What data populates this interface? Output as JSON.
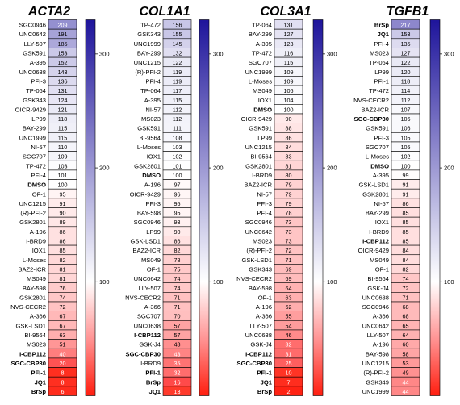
{
  "chart_data": [
    {
      "type": "heatmap",
      "title": "ACTA2",
      "scale_ticks": [
        100,
        200,
        300
      ],
      "min": 0,
      "max": 330,
      "rows": [
        {
          "label": "SGC0946",
          "value": 209,
          "bold": false
        },
        {
          "label": "UNC0642",
          "value": 191,
          "bold": false
        },
        {
          "label": "LLY-507",
          "value": 185,
          "bold": false
        },
        {
          "label": "GSK591",
          "value": 153,
          "bold": false
        },
        {
          "label": "A-395",
          "value": 152,
          "bold": false
        },
        {
          "label": "UNC0638",
          "value": 143,
          "bold": false
        },
        {
          "label": "PFI-3",
          "value": 136,
          "bold": false
        },
        {
          "label": "TP-064",
          "value": 131,
          "bold": false
        },
        {
          "label": "GSK343",
          "value": 124,
          "bold": false
        },
        {
          "label": "OICR-9429",
          "value": 121,
          "bold": false
        },
        {
          "label": "LP99",
          "value": 118,
          "bold": false
        },
        {
          "label": "BAY-299",
          "value": 115,
          "bold": false
        },
        {
          "label": "UNC1999",
          "value": 115,
          "bold": false
        },
        {
          "label": "NI-57",
          "value": 110,
          "bold": false
        },
        {
          "label": "SGC707",
          "value": 109,
          "bold": false
        },
        {
          "label": "TP-472",
          "value": 103,
          "bold": false
        },
        {
          "label": "PFI-4",
          "value": 101,
          "bold": false
        },
        {
          "label": "DMSO",
          "value": 100,
          "bold": true
        },
        {
          "label": "OF-1",
          "value": 95,
          "bold": false
        },
        {
          "label": "UNC1215",
          "value": 91,
          "bold": false
        },
        {
          "label": "(R)-PFI-2",
          "value": 90,
          "bold": false
        },
        {
          "label": "GSK2801",
          "value": 89,
          "bold": false
        },
        {
          "label": "A-196",
          "value": 86,
          "bold": false
        },
        {
          "label": "I-BRD9",
          "value": 86,
          "bold": false
        },
        {
          "label": "IOX1",
          "value": 85,
          "bold": false
        },
        {
          "label": "L-Moses",
          "value": 82,
          "bold": false
        },
        {
          "label": "BAZ2-ICR",
          "value": 81,
          "bold": false
        },
        {
          "label": "MS049",
          "value": 81,
          "bold": false
        },
        {
          "label": "BAY-598",
          "value": 76,
          "bold": false
        },
        {
          "label": "GSK2801",
          "value": 74,
          "bold": false
        },
        {
          "label": "NVS-CECR2",
          "value": 72,
          "bold": false
        },
        {
          "label": "A-366",
          "value": 67,
          "bold": false
        },
        {
          "label": "GSK-LSD1",
          "value": 67,
          "bold": false
        },
        {
          "label": "BI-9564",
          "value": 63,
          "bold": false
        },
        {
          "label": "MS023",
          "value": 51,
          "bold": false
        },
        {
          "label": "I-CBP112",
          "value": 40,
          "bold": true
        },
        {
          "label": "SGC-CBP30",
          "value": 20,
          "bold": true
        },
        {
          "label": "PFI-1",
          "value": 8,
          "bold": true
        },
        {
          "label": "JQ1",
          "value": 8,
          "bold": true
        },
        {
          "label": "BrSp",
          "value": 6,
          "bold": true
        }
      ]
    },
    {
      "type": "heatmap",
      "title": "COL1A1",
      "scale_ticks": [
        100,
        200,
        300
      ],
      "min": 0,
      "max": 330,
      "rows": [
        {
          "label": "TP-472",
          "value": 156,
          "bold": false
        },
        {
          "label": "GSK343",
          "value": 155,
          "bold": false
        },
        {
          "label": "UNC1999",
          "value": 145,
          "bold": false
        },
        {
          "label": "BAY-299",
          "value": 132,
          "bold": false
        },
        {
          "label": "UNC1215",
          "value": 122,
          "bold": false
        },
        {
          "label": "(R)-PFI-2",
          "value": 119,
          "bold": false
        },
        {
          "label": "PFI-4",
          "value": 119,
          "bold": false
        },
        {
          "label": "TP-064",
          "value": 117,
          "bold": false
        },
        {
          "label": "A-395",
          "value": 115,
          "bold": false
        },
        {
          "label": "NI-57",
          "value": 112,
          "bold": false
        },
        {
          "label": "MS023",
          "value": 112,
          "bold": false
        },
        {
          "label": "GSK591",
          "value": 111,
          "bold": false
        },
        {
          "label": "BI-9564",
          "value": 108,
          "bold": false
        },
        {
          "label": "L-Moses",
          "value": 103,
          "bold": false
        },
        {
          "label": "IOX1",
          "value": 102,
          "bold": false
        },
        {
          "label": "GSK2801",
          "value": 101,
          "bold": false
        },
        {
          "label": "DMSO",
          "value": 100,
          "bold": true
        },
        {
          "label": "A-196",
          "value": 97,
          "bold": false
        },
        {
          "label": "OICR-9429",
          "value": 96,
          "bold": false
        },
        {
          "label": "PFI-3",
          "value": 95,
          "bold": false
        },
        {
          "label": "BAY-598",
          "value": 95,
          "bold": false
        },
        {
          "label": "SGC0946",
          "value": 93,
          "bold": false
        },
        {
          "label": "LP99",
          "value": 90,
          "bold": false
        },
        {
          "label": "GSK-LSD1",
          "value": 86,
          "bold": false
        },
        {
          "label": "BAZ2-ICR",
          "value": 82,
          "bold": false
        },
        {
          "label": "MS049",
          "value": 78,
          "bold": false
        },
        {
          "label": "OF-1",
          "value": 75,
          "bold": false
        },
        {
          "label": "UNC0642",
          "value": 74,
          "bold": false
        },
        {
          "label": "LLY-507",
          "value": 74,
          "bold": false
        },
        {
          "label": "NVS-CECR2",
          "value": 71,
          "bold": false
        },
        {
          "label": "A-366",
          "value": 71,
          "bold": false
        },
        {
          "label": "SGC707",
          "value": 70,
          "bold": false
        },
        {
          "label": "UNC0638",
          "value": 57,
          "bold": false
        },
        {
          "label": "I-CBP112",
          "value": 57,
          "bold": true
        },
        {
          "label": "GSK-J4",
          "value": 48,
          "bold": false
        },
        {
          "label": "SGC-CBP30",
          "value": 43,
          "bold": true
        },
        {
          "label": "I-BRD9",
          "value": 35,
          "bold": false
        },
        {
          "label": "PFI-1",
          "value": 32,
          "bold": true
        },
        {
          "label": "BrSp",
          "value": 16,
          "bold": true
        },
        {
          "label": "JQ1",
          "value": 13,
          "bold": true
        }
      ]
    },
    {
      "type": "heatmap",
      "title": "COL3A1",
      "scale_ticks": [
        100,
        200,
        300
      ],
      "min": 0,
      "max": 330,
      "rows": [
        {
          "label": "TP-064",
          "value": 131,
          "bold": false
        },
        {
          "label": "BAY-299",
          "value": 127,
          "bold": false
        },
        {
          "label": "A-395",
          "value": 123,
          "bold": false
        },
        {
          "label": "TP-472",
          "value": 116,
          "bold": false
        },
        {
          "label": "SGC707",
          "value": 115,
          "bold": false
        },
        {
          "label": "UNC1999",
          "value": 109,
          "bold": false
        },
        {
          "label": "L-Moses",
          "value": 109,
          "bold": false
        },
        {
          "label": "MS049",
          "value": 106,
          "bold": false
        },
        {
          "label": "IOX1",
          "value": 104,
          "bold": false
        },
        {
          "label": "DMSO",
          "value": 100,
          "bold": true
        },
        {
          "label": "OICR-9429",
          "value": 90,
          "bold": false
        },
        {
          "label": "GSK591",
          "value": 88,
          "bold": false
        },
        {
          "label": "LP99",
          "value": 86,
          "bold": false
        },
        {
          "label": "UNC1215",
          "value": 84,
          "bold": false
        },
        {
          "label": "BI-9564",
          "value": 83,
          "bold": false
        },
        {
          "label": "GSK2801",
          "value": 81,
          "bold": false
        },
        {
          "label": "I-BRD9",
          "value": 80,
          "bold": false
        },
        {
          "label": "BAZ2-ICR",
          "value": 79,
          "bold": false
        },
        {
          "label": "NI-57",
          "value": 79,
          "bold": false
        },
        {
          "label": "PFI-3",
          "value": 79,
          "bold": false
        },
        {
          "label": "PFI-4",
          "value": 78,
          "bold": false
        },
        {
          "label": "SGC0946",
          "value": 73,
          "bold": false
        },
        {
          "label": "UNC0642",
          "value": 73,
          "bold": false
        },
        {
          "label": "MS023",
          "value": 73,
          "bold": false
        },
        {
          "label": "(R)-PFI-2",
          "value": 72,
          "bold": false
        },
        {
          "label": "GSK-LSD1",
          "value": 71,
          "bold": false
        },
        {
          "label": "GSK343",
          "value": 69,
          "bold": false
        },
        {
          "label": "NVS-CECR2",
          "value": 69,
          "bold": false
        },
        {
          "label": "BAY-598",
          "value": 64,
          "bold": false
        },
        {
          "label": "OF-1",
          "value": 63,
          "bold": false
        },
        {
          "label": "A-196",
          "value": 62,
          "bold": false
        },
        {
          "label": "A-366",
          "value": 55,
          "bold": false
        },
        {
          "label": "LLY-507",
          "value": 54,
          "bold": false
        },
        {
          "label": "UNC0638",
          "value": 46,
          "bold": false
        },
        {
          "label": "GSK-J4",
          "value": 32,
          "bold": false
        },
        {
          "label": "I-CBP112",
          "value": 31,
          "bold": true
        },
        {
          "label": "SGC-CBP30",
          "value": 25,
          "bold": true
        },
        {
          "label": "PFI-1",
          "value": 10,
          "bold": true
        },
        {
          "label": "JQ1",
          "value": 7,
          "bold": true
        },
        {
          "label": "BrSp",
          "value": 2,
          "bold": true
        }
      ]
    },
    {
      "type": "heatmap",
      "title": "TGFB1",
      "scale_ticks": [
        100,
        200,
        300
      ],
      "min": 0,
      "max": 330,
      "rows": [
        {
          "label": "BrSp",
          "value": 217,
          "bold": true
        },
        {
          "label": "JQ1",
          "value": 153,
          "bold": true
        },
        {
          "label": "PFI-4",
          "value": 135,
          "bold": false
        },
        {
          "label": "MS023",
          "value": 127,
          "bold": false
        },
        {
          "label": "TP-064",
          "value": 122,
          "bold": false
        },
        {
          "label": "LP99",
          "value": 120,
          "bold": false
        },
        {
          "label": "PFI-1",
          "value": 118,
          "bold": false
        },
        {
          "label": "TP-472",
          "value": 114,
          "bold": false
        },
        {
          "label": "NVS-CECR2",
          "value": 112,
          "bold": false
        },
        {
          "label": "BAZ2-ICR",
          "value": 107,
          "bold": false
        },
        {
          "label": "SGC-CBP30",
          "value": 106,
          "bold": true
        },
        {
          "label": "GSK591",
          "value": 106,
          "bold": false
        },
        {
          "label": "PFI-3",
          "value": 105,
          "bold": false
        },
        {
          "label": "SGC707",
          "value": 105,
          "bold": false
        },
        {
          "label": "L-Moses",
          "value": 102,
          "bold": false
        },
        {
          "label": "DMSO",
          "value": 100,
          "bold": true
        },
        {
          "label": "A-395",
          "value": 99,
          "bold": false
        },
        {
          "label": "GSK-LSD1",
          "value": 91,
          "bold": false
        },
        {
          "label": "GSK2801",
          "value": 91,
          "bold": false
        },
        {
          "label": "NI-57",
          "value": 86,
          "bold": false
        },
        {
          "label": "BAY-299",
          "value": 85,
          "bold": false
        },
        {
          "label": "IOX1",
          "value": 85,
          "bold": false
        },
        {
          "label": "I-BRD9",
          "value": 85,
          "bold": false
        },
        {
          "label": "I-CBP112",
          "value": 85,
          "bold": true
        },
        {
          "label": "OICR-9429",
          "value": 84,
          "bold": false
        },
        {
          "label": "MS049",
          "value": 84,
          "bold": false
        },
        {
          "label": "OF-1",
          "value": 82,
          "bold": false
        },
        {
          "label": "BI-9564",
          "value": 74,
          "bold": false
        },
        {
          "label": "GSK-J4",
          "value": 72,
          "bold": false
        },
        {
          "label": "UNC0638",
          "value": 71,
          "bold": false
        },
        {
          "label": "SGC0946",
          "value": 68,
          "bold": false
        },
        {
          "label": "A-366",
          "value": 68,
          "bold": false
        },
        {
          "label": "UNC0642",
          "value": 65,
          "bold": false
        },
        {
          "label": "LLY-507",
          "value": 64,
          "bold": false
        },
        {
          "label": "A-196",
          "value": 60,
          "bold": false
        },
        {
          "label": "BAY-598",
          "value": 58,
          "bold": false
        },
        {
          "label": "UNC1215",
          "value": 53,
          "bold": false
        },
        {
          "label": "(R)-PFI-2",
          "value": 49,
          "bold": false
        },
        {
          "label": "GSK349",
          "value": 44,
          "bold": false
        },
        {
          "label": "UNC1999",
          "value": 44,
          "bold": false
        }
      ]
    }
  ]
}
